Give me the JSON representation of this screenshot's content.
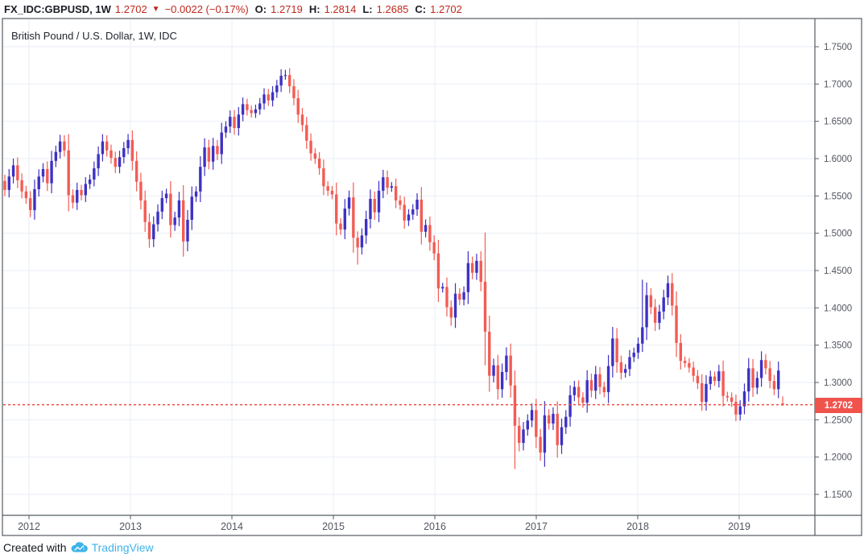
{
  "topbar": {
    "symbol": "FX_IDC:GBPUSD, 1W",
    "last": "1.2702",
    "direction_arrow": "▼",
    "change": "−0.0022 (−0.17%)",
    "ohlc": [
      {
        "label": "O:",
        "value": "1.2719"
      },
      {
        "label": "H:",
        "value": "1.2814"
      },
      {
        "label": "L:",
        "value": "1.2685"
      },
      {
        "label": "C:",
        "value": "1.2702"
      }
    ]
  },
  "chart": {
    "title": "British Pound / U.S. Dollar, 1W, IDC"
  },
  "chart_data": {
    "type": "candlestick",
    "title": "British Pound / U.S. Dollar, 1W, IDC",
    "symbol": "GBPUSD",
    "timeframe": "1W",
    "data_source": "IDC",
    "y_axis": {
      "ticks": [
        1.75,
        1.7,
        1.65,
        1.6,
        1.55,
        1.5,
        1.45,
        1.4,
        1.35,
        1.3,
        1.25,
        1.2,
        1.15
      ],
      "min": 1.113,
      "max": 1.799
    },
    "x_axis": {
      "ticks": [
        "2012",
        "2013",
        "2014",
        "2015",
        "2016",
        "2017",
        "2018",
        "2019"
      ]
    },
    "current_price": {
      "value": 1.2702,
      "label": "1.2702"
    },
    "last_candle": {
      "o": 1.2719,
      "h": 1.2814,
      "l": 1.2685,
      "c": 1.2702
    },
    "closes": [
      1.558,
      1.576,
      1.591,
      1.571,
      1.556,
      1.547,
      1.531,
      1.559,
      1.576,
      1.586,
      1.567,
      1.597,
      1.609,
      1.623,
      1.611,
      1.551,
      1.541,
      1.558,
      1.551,
      1.566,
      1.572,
      1.587,
      1.606,
      1.623,
      1.611,
      1.601,
      1.589,
      1.602,
      1.614,
      1.625,
      1.597,
      1.569,
      1.544,
      1.515,
      1.492,
      1.512,
      1.529,
      1.547,
      1.553,
      1.511,
      1.521,
      1.544,
      1.489,
      1.518,
      1.549,
      1.556,
      1.589,
      1.615,
      1.596,
      1.617,
      1.606,
      1.635,
      1.643,
      1.656,
      1.641,
      1.659,
      1.673,
      1.665,
      1.661,
      1.666,
      1.674,
      1.686,
      1.678,
      1.689,
      1.698,
      1.711,
      1.712,
      1.697,
      1.681,
      1.659,
      1.645,
      1.624,
      1.607,
      1.6,
      1.587,
      1.563,
      1.557,
      1.552,
      1.513,
      1.505,
      1.533,
      1.548,
      1.494,
      1.481,
      1.497,
      1.519,
      1.546,
      1.528,
      1.557,
      1.575,
      1.561,
      1.563,
      1.544,
      1.538,
      1.517,
      1.525,
      1.532,
      1.545,
      1.502,
      1.511,
      1.488,
      1.473,
      1.426,
      1.428,
      1.401,
      1.387,
      1.419,
      1.411,
      1.421,
      1.46,
      1.447,
      1.463,
      1.435,
      1.368,
      1.309,
      1.323,
      1.291,
      1.314,
      1.336,
      1.296,
      1.242,
      1.219,
      1.237,
      1.249,
      1.263,
      1.227,
      1.206,
      1.256,
      1.245,
      1.258,
      1.216,
      1.24,
      1.254,
      1.283,
      1.294,
      1.28,
      1.273,
      1.303,
      1.289,
      1.311,
      1.294,
      1.287,
      1.322,
      1.359,
      1.327,
      1.313,
      1.318,
      1.334,
      1.34,
      1.352,
      1.374,
      1.417,
      1.401,
      1.38,
      1.395,
      1.414,
      1.433,
      1.403,
      1.353,
      1.329,
      1.326,
      1.32,
      1.309,
      1.299,
      1.274,
      1.298,
      1.308,
      1.302,
      1.315,
      1.282,
      1.28,
      1.274,
      1.257,
      1.268,
      1.288,
      1.319,
      1.293,
      1.306,
      1.33,
      1.319,
      1.302,
      1.291,
      1.316,
      1.2702
    ],
    "overrides": {
      "66": {
        "h": 1.719
      },
      "83": {
        "l": 1.458
      },
      "105": {
        "l": 1.376
      },
      "113": {
        "h": 1.501,
        "l": 1.323
      },
      "120": {
        "l": 1.184
      },
      "150": {
        "h": 1.4377
      },
      "172": {
        "l": 1.248
      }
    },
    "colors": {
      "up": "#3d31c3",
      "down": "#f25c54",
      "price_line": "#ef4a44",
      "badge": "#f0524c",
      "grid": "#e9eef4",
      "axis_text": "#51555e",
      "border": "#555a62"
    }
  },
  "footer": {
    "created_with": "Created with",
    "brand": "TradingView"
  }
}
